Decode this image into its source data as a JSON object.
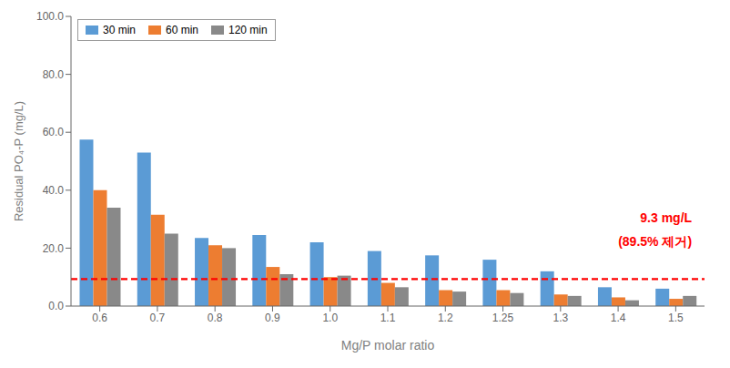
{
  "chart_data": {
    "type": "bar",
    "categories": [
      "0.6",
      "0.7",
      "0.8",
      "0.9",
      "1.0",
      "1.1",
      "1.2",
      "1.25",
      "1.3",
      "1.4",
      "1.5"
    ],
    "series": [
      {
        "name": "30 min",
        "color": "#5B9BD5",
        "values": [
          57.5,
          53.0,
          23.5,
          24.5,
          22.0,
          19.0,
          17.5,
          16.0,
          12.0,
          6.5,
          6.0
        ]
      },
      {
        "name": "60 min",
        "color": "#ED7D31",
        "values": [
          40.0,
          31.5,
          21.0,
          13.5,
          10.0,
          8.0,
          5.5,
          5.5,
          4.0,
          3.0,
          2.5
        ]
      },
      {
        "name": "120 min",
        "color": "#898989",
        "values": [
          34.0,
          25.0,
          20.0,
          11.0,
          10.5,
          6.5,
          5.0,
          4.5,
          3.5,
          2.0,
          3.5
        ]
      }
    ],
    "xlabel": "Mg/P molar ratio",
    "ylabel": "Residual PO₄-P (mg/L)",
    "ylim": [
      0,
      100
    ],
    "yticks": [
      {
        "value": 0,
        "label": "0.0"
      },
      {
        "value": 20,
        "label": "20.0"
      },
      {
        "value": 40,
        "label": "40.0"
      },
      {
        "value": 60,
        "label": "60.0"
      },
      {
        "value": 80,
        "label": "80.0"
      },
      {
        "value": 100,
        "label": "100.0"
      }
    ],
    "grid": false,
    "legend": "upper left",
    "reference_line": {
      "value": 9.3,
      "color": "#FF0000",
      "line_style": "dashed"
    },
    "annotations": [
      {
        "text": "9.3 mg/L",
        "color": "#FF0000"
      },
      {
        "text": "(89.5% 제거)",
        "color": "#FF0000"
      }
    ]
  }
}
